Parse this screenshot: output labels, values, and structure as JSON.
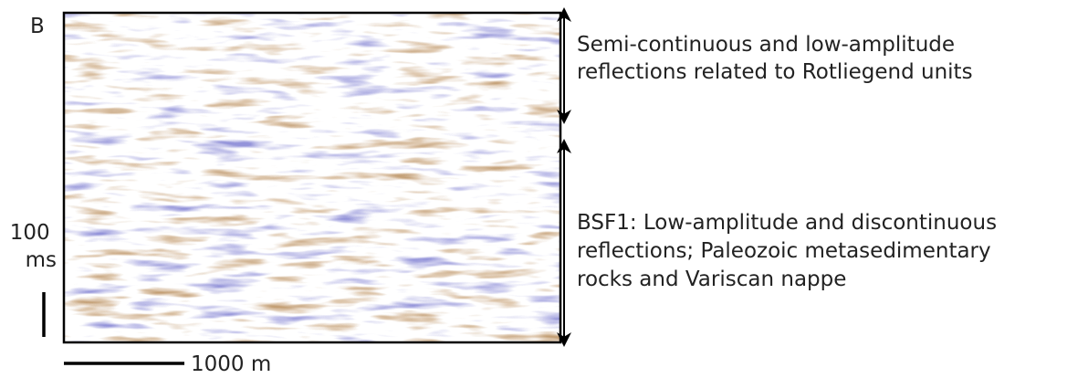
{
  "panel_label": "B",
  "upper_annotation": [
    "Semi-continuous and low-amplitude",
    "reflections related to Rotliegend units"
  ],
  "lower_annotation": [
    "BSF1: Low-amplitude and discontinuous",
    "reflections; Paleozoic metasedimentary",
    "rocks and Variscan nappe"
  ],
  "vertical_scale": [
    "100",
    "ms"
  ],
  "horizontal_scale": "1000 m"
}
